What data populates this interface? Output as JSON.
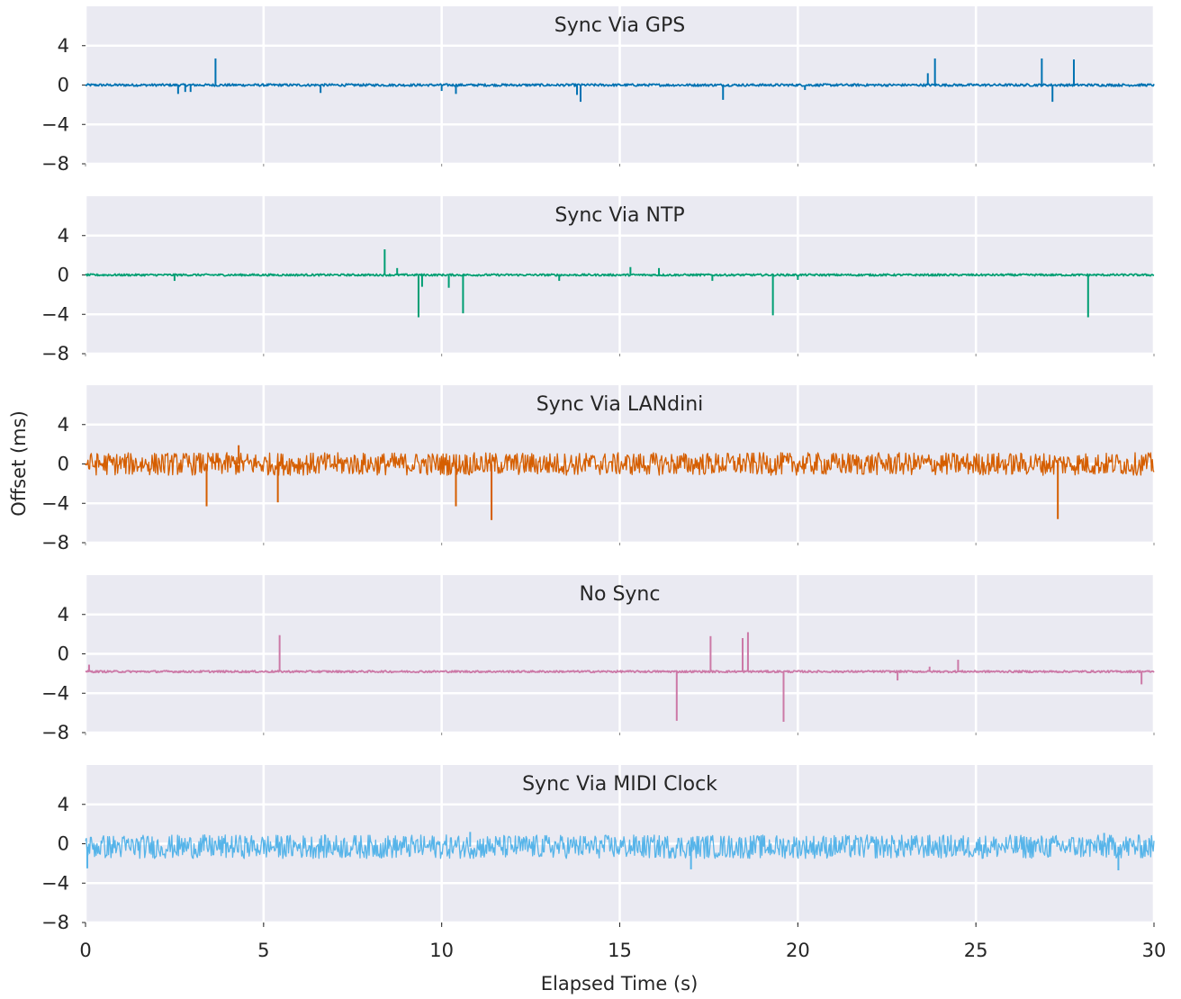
{
  "chart_data": {
    "type": "line",
    "xlabel": "Elapsed Time (s)",
    "ylabel": "Offset (ms)",
    "xlim": [
      0,
      30
    ],
    "ylim": [
      -8,
      8
    ],
    "xticks": [
      "0",
      "5",
      "10",
      "15",
      "20",
      "25",
      "30"
    ],
    "yticks": [
      "4",
      "0",
      "−4",
      "−8"
    ],
    "grid": true,
    "sharex": true,
    "series": [
      {
        "name": "Sync Via GPS",
        "color": "#0072b2",
        "baseline": 0.0,
        "noise": 0.12,
        "spikes": [
          [
            2.6,
            -0.9
          ],
          [
            2.8,
            -0.7
          ],
          [
            2.95,
            -0.7
          ],
          [
            3.65,
            2.7
          ],
          [
            6.6,
            -0.8
          ],
          [
            10.0,
            -0.6
          ],
          [
            10.4,
            -0.9
          ],
          [
            13.8,
            -1.0
          ],
          [
            13.9,
            -1.7
          ],
          [
            17.9,
            -1.5
          ],
          [
            20.2,
            -0.5
          ],
          [
            23.65,
            1.2
          ],
          [
            23.85,
            2.7
          ],
          [
            26.85,
            2.7
          ],
          [
            27.15,
            -1.7
          ],
          [
            27.75,
            2.6
          ]
        ]
      },
      {
        "name": "Sync Via NTP",
        "color": "#009e73",
        "baseline": 0.0,
        "noise": 0.1,
        "spikes": [
          [
            2.5,
            -0.6
          ],
          [
            8.4,
            2.6
          ],
          [
            8.75,
            0.7
          ],
          [
            9.35,
            -4.3
          ],
          [
            9.45,
            -1.2
          ],
          [
            10.2,
            -1.3
          ],
          [
            10.6,
            -3.9
          ],
          [
            13.3,
            -0.6
          ],
          [
            15.3,
            0.8
          ],
          [
            16.1,
            0.7
          ],
          [
            17.6,
            -0.6
          ],
          [
            19.3,
            -4.1
          ],
          [
            20.0,
            -0.5
          ],
          [
            28.15,
            -4.3
          ]
        ]
      },
      {
        "name": "Sync Via LANdini",
        "color": "#d55e00",
        "baseline": 0.0,
        "noise": 1.15,
        "spikes": [
          [
            3.4,
            -4.3
          ],
          [
            4.3,
            1.9
          ],
          [
            5.4,
            -3.9
          ],
          [
            10.4,
            -4.3
          ],
          [
            11.4,
            -5.7
          ],
          [
            27.3,
            -5.6
          ]
        ]
      },
      {
        "name": "No Sync",
        "color": "#cc79a7",
        "baseline": -1.8,
        "noise": 0.1,
        "spikes": [
          [
            0.1,
            -1.1
          ],
          [
            5.45,
            1.9
          ],
          [
            16.6,
            -6.8
          ],
          [
            17.55,
            1.8
          ],
          [
            18.45,
            1.6
          ],
          [
            18.6,
            2.2
          ],
          [
            19.6,
            -6.9
          ],
          [
            22.8,
            -2.7
          ],
          [
            23.7,
            -1.3
          ],
          [
            24.5,
            -0.6
          ],
          [
            29.65,
            -3.1
          ]
        ]
      },
      {
        "name": "Sync Via MIDI Clock",
        "color": "#56b4e9",
        "baseline": -0.3,
        "noise": 1.2,
        "spikes": [
          [
            0.05,
            -2.5
          ],
          [
            10.8,
            1.2
          ],
          [
            17.0,
            -2.6
          ],
          [
            28.6,
            1.1
          ],
          [
            29.0,
            -2.7
          ]
        ]
      }
    ]
  }
}
